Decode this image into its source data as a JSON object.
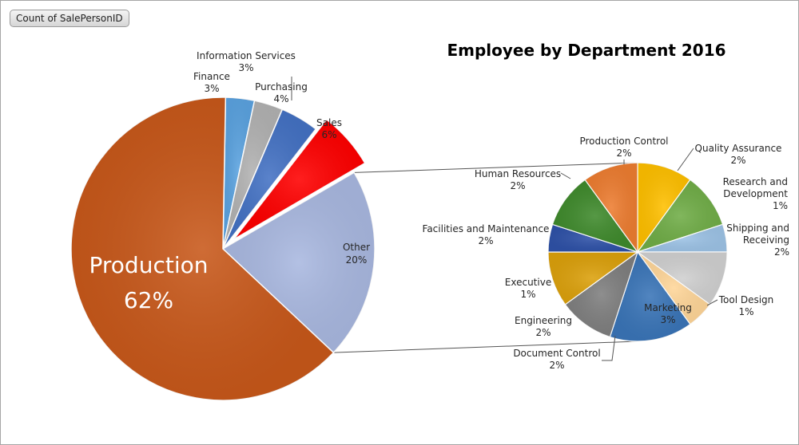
{
  "pivot_field_button": "Count of SalePersonID",
  "chart_data": {
    "type": "pie",
    "subtype": "pie-of-pie",
    "title": "Employee by Department 2016",
    "main_pie": {
      "slices": [
        {
          "name": "Finance",
          "percent_label": "3%",
          "value": 3,
          "color": "#5ba3e0"
        },
        {
          "name": "Information Services",
          "percent_label": "3%",
          "value": 3,
          "color": "#b2b2b2"
        },
        {
          "name": "Purchasing",
          "percent_label": "4%",
          "value": 4,
          "color": "#4472c4"
        },
        {
          "name": "Sales",
          "percent_label": "6%",
          "value": 6,
          "color": "#ff0000",
          "exploded": true
        },
        {
          "name": "Other",
          "percent_label": "20%",
          "value": 20,
          "color": "#a9b8e0"
        },
        {
          "name": "Production",
          "percent_label": "62%",
          "value": 62,
          "color": "#c8581a"
        }
      ]
    },
    "secondary_pie": {
      "breakdown_of": "Other",
      "slices": [
        {
          "name": "Production Control",
          "percent_label": "2%",
          "value": 2,
          "color": "#ffc000"
        },
        {
          "name": "Quality Assurance",
          "percent_label": "2%",
          "value": 2,
          "color": "#70ad47"
        },
        {
          "name": "Research and Development",
          "percent_label": "1%",
          "value": 1,
          "color": "#9dc3e6"
        },
        {
          "name": "Shipping and Receiving",
          "percent_label": "2%",
          "value": 2,
          "color": "#d0d0d0"
        },
        {
          "name": "Tool Design",
          "percent_label": "1%",
          "value": 1,
          "color": "#ffd699"
        },
        {
          "name": "Marketing",
          "percent_label": "3%",
          "value": 3,
          "color": "#3a75b8"
        },
        {
          "name": "Document  Control",
          "percent_label": "2%",
          "value": 2,
          "color": "#7f7f7f"
        },
        {
          "name": "Engineering",
          "percent_label": "2%",
          "value": 2,
          "color": "#dca10c"
        },
        {
          "name": "Executive",
          "percent_label": "1%",
          "value": 1,
          "color": "#2f52a8"
        },
        {
          "name": "Facilities and Maintenance",
          "percent_label": "2%",
          "value": 2,
          "color": "#3f8a2c"
        },
        {
          "name": "Human Resources",
          "percent_label": "2%",
          "value": 2,
          "color": "#ed7d31"
        }
      ]
    }
  }
}
